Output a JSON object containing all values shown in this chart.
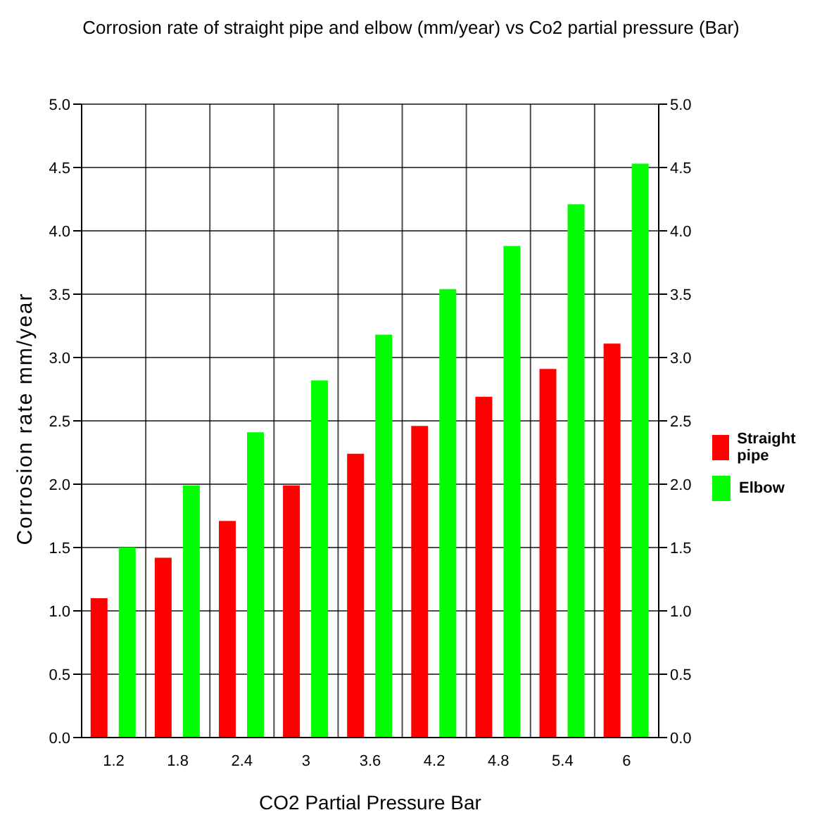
{
  "chart_data": {
    "type": "bar",
    "title": "Corrosion rate of straight pipe and elbow (mm/year) vs Co2 partial pressure (Bar)",
    "xlabel": "CO2 Partial Pressure Bar",
    "ylabel": "Corrosion rate mm/year",
    "categories": [
      "1.2",
      "1.8",
      "2.4",
      "3",
      "3.6",
      "4.2",
      "4.8",
      "5.4",
      "6"
    ],
    "series": [
      {
        "name": "Straight pipe",
        "color": "#ff0000",
        "values": [
          1.1,
          1.42,
          1.71,
          1.99,
          2.24,
          2.46,
          2.69,
          2.91,
          3.11
        ]
      },
      {
        "name": "Elbow",
        "color": "#00ff00",
        "values": [
          1.5,
          1.99,
          2.41,
          2.82,
          3.18,
          3.54,
          3.88,
          4.21,
          4.53
        ]
      }
    ],
    "ylim": [
      0,
      5
    ],
    "yticks": [
      {
        "value": 0,
        "label": "0.0"
      },
      {
        "value": 0.5,
        "label": "0.5"
      },
      {
        "value": 1,
        "label": "1.0"
      },
      {
        "value": 1.5,
        "label": "1.5"
      },
      {
        "value": 2,
        "label": "2.0"
      },
      {
        "value": 2.5,
        "label": "2.5"
      },
      {
        "value": 3,
        "label": "3.0"
      },
      {
        "value": 3.5,
        "label": "3.5"
      },
      {
        "value": 4,
        "label": "4.0"
      },
      {
        "value": 4.5,
        "label": "4.5"
      },
      {
        "value": 5,
        "label": "5.0"
      }
    ],
    "y2lim": [
      0,
      5
    ],
    "y2ticks": [
      {
        "value": 0,
        "label": "0.0"
      },
      {
        "value": 0.5,
        "label": "0.5"
      },
      {
        "value": 1,
        "label": "1.0"
      },
      {
        "value": 1.5,
        "label": "1.5"
      },
      {
        "value": 2,
        "label": "2.0"
      },
      {
        "value": 2.5,
        "label": "2.5"
      },
      {
        "value": 3,
        "label": "3.0"
      },
      {
        "value": 3.5,
        "label": "3.5"
      },
      {
        "value": 4,
        "label": "4.0"
      },
      {
        "value": 4.5,
        "label": "4.5"
      },
      {
        "value": 5,
        "label": "5.0"
      }
    ],
    "grid": true,
    "legend": "right"
  }
}
